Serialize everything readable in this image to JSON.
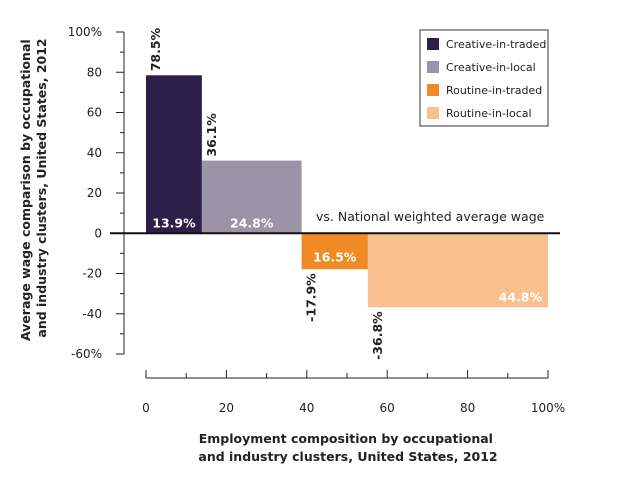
{
  "chart_data": {
    "type": "bar",
    "variant": "variable-width (marimekko)",
    "title": "",
    "xlabel_lines": [
      "Employment composition by occupational",
      "and industry clusters, United States, 2012"
    ],
    "ylabel_lines": [
      "Average wage comparison by occupational",
      "and industry clusters, United States, 2012"
    ],
    "xlim": [
      0,
      100
    ],
    "ylim": [
      -60,
      100
    ],
    "x_ticks": [
      "0",
      "20",
      "40",
      "60",
      "80",
      "100%"
    ],
    "y_ticks": [
      "100%",
      "80",
      "60",
      "40",
      "20",
      "0",
      "-20",
      "-40",
      "-60%"
    ],
    "grid": false,
    "legend_position": "top-right",
    "baseline_annotation": "vs. National weighted average wage",
    "series": [
      {
        "name": "Creative-in-traded",
        "share": 13.9,
        "share_label": "13.9%",
        "wage_diff": 78.5,
        "wage_label": "78.5%",
        "color": "#2e1f4a"
      },
      {
        "name": "Creative-in-local",
        "share": 24.8,
        "share_label": "24.8%",
        "wage_diff": 36.1,
        "wage_label": "36.1%",
        "color": "#9b93a8"
      },
      {
        "name": "Routine-in-traded",
        "share": 16.5,
        "share_label": "16.5%",
        "wage_diff": -17.9,
        "wage_label": "-17.9%",
        "color": "#f08a24"
      },
      {
        "name": "Routine-in-local",
        "share": 44.8,
        "share_label": "44.8%",
        "wage_diff": -36.8,
        "wage_label": "-36.8%",
        "color": "#f8c08e"
      }
    ]
  }
}
